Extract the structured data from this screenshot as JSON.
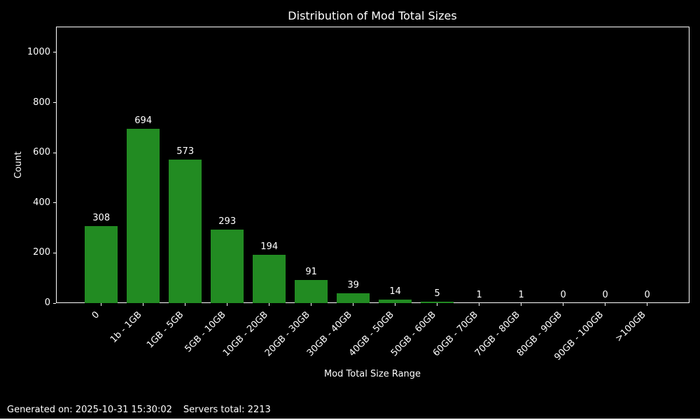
{
  "title": "Distribution of Mod Total Sizes",
  "footer": {
    "generated": "Generated on: 2025-10-31 15:30:02",
    "servers_total": "Servers total: 2213"
  },
  "chart_data": {
    "type": "bar",
    "title": "Distribution of Mod Total Sizes",
    "xlabel": "Mod Total Size Range",
    "ylabel": "Count",
    "categories": [
      "0",
      "1b - 1GB",
      "1GB - 5GB",
      "5GB - 10GB",
      "10GB - 20GB",
      "20GB - 30GB",
      "30GB - 40GB",
      "40GB - 50GB",
      "50GB - 60GB",
      "60GB - 70GB",
      "70GB - 80GB",
      "80GB - 90GB",
      "90GB - 100GB",
      ">100GB"
    ],
    "values": [
      308,
      694,
      573,
      293,
      194,
      91,
      39,
      14,
      5,
      1,
      1,
      0,
      0,
      0
    ],
    "yticks": [
      0,
      200,
      400,
      600,
      800,
      1000
    ],
    "ylim": [
      0,
      1103
    ],
    "xtick_rotation": 45,
    "grid": false,
    "legend": null,
    "bar_color": "#228B22",
    "background_color": "#000000",
    "text_color": "#ffffff",
    "bar_value_labels_shown": true
  }
}
